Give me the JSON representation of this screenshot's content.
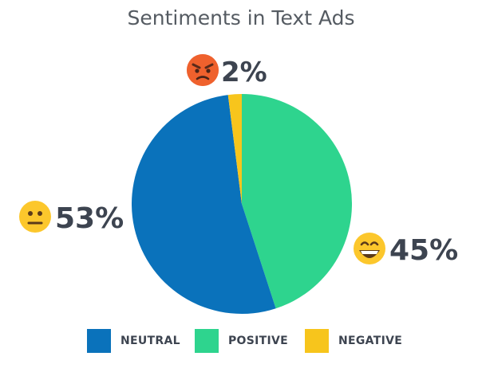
{
  "chart_data": {
    "type": "pie",
    "title": "Sentiments in Text Ads",
    "slices": [
      {
        "name": "POSITIVE",
        "value": 45,
        "label": "45%",
        "color": "#2ed48e",
        "icon": "grinning-face-icon"
      },
      {
        "name": "NEUTRAL",
        "value": 53,
        "label": "53%",
        "color": "#0a72bb",
        "icon": "neutral-face-icon"
      },
      {
        "name": "NEGATIVE",
        "value": 2,
        "label": "2%",
        "color": "#f7c51c",
        "icon": "angry-face-icon"
      }
    ],
    "legend": {
      "placement": "bottom",
      "items": [
        {
          "name": "NEUTRAL",
          "color": "#0a72bb"
        },
        {
          "name": "POSITIVE",
          "color": "#2ed48e"
        },
        {
          "name": "NEGATIVE",
          "color": "#f7c51c"
        }
      ]
    }
  }
}
